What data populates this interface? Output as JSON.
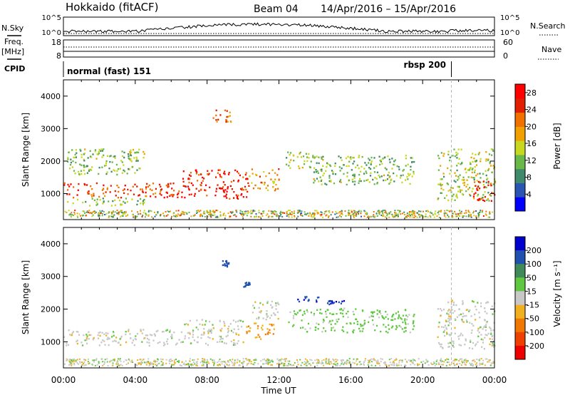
{
  "header": {
    "station": "Hokkaido (fitACF)",
    "beam": "Beam 04",
    "date_range": "14/Apr/2016 – 15/Apr/2016"
  },
  "side_labels": {
    "nsky": "N.Sky",
    "nsearch": "N.Search",
    "freq": "Freq.",
    "freq_unit": "[MHz]",
    "nave": "Nave",
    "cpid": "CPID",
    "nsky_tick_hi": "10^5",
    "nsky_tick_lo": "10^0",
    "nsearch_tick_hi": "10^5",
    "nsearch_tick_lo": "10^0",
    "freq_tick_hi": "18",
    "freq_tick_lo": "8",
    "nave_tick_hi": "60",
    "nave_tick_lo": "0"
  },
  "cpid": {
    "mode1": "normal (fast) 151",
    "mode2": "rbsp 200",
    "switch_hour": 21.6
  },
  "chart_data": [
    {
      "type": "heatmap",
      "panel": "power",
      "ylabel": "Slant Range [km]",
      "xlabel": "",
      "xlim": [
        0,
        24
      ],
      "ylim": [
        200,
        4500
      ],
      "y_ticks": [
        "1000",
        "2000",
        "3000",
        "4000"
      ],
      "colorbar": {
        "label": "Power [dB]",
        "ticks": [
          "4",
          "8",
          "12",
          "16",
          "20",
          "24",
          "28"
        ],
        "range": [
          0,
          30
        ],
        "colors": [
          "#0000ff",
          "#2a55b0",
          "#3f8a6a",
          "#6ab84a",
          "#c8d820",
          "#f0a000",
          "#f07000",
          "#e02000",
          "#ff0000"
        ]
      },
      "regions": [
        {
          "x": [
            0.0,
            6.6
          ],
          "y": [
            900,
            1350
          ],
          "value": 24
        },
        {
          "x": [
            6.6,
            10.3
          ],
          "y": [
            850,
            1750
          ],
          "value": 26
        },
        {
          "x": [
            0.2,
            4.5
          ],
          "y": [
            650,
            900
          ],
          "value": 12
        },
        {
          "x": [
            0.2,
            4.5
          ],
          "y": [
            1600,
            2400
          ],
          "value": 12
        },
        {
          "x": [
            8.3,
            9.3
          ],
          "y": [
            3200,
            3600
          ],
          "value": 22
        },
        {
          "x": [
            10.3,
            12.0
          ],
          "y": [
            1100,
            1800
          ],
          "value": 20
        },
        {
          "x": [
            12.3,
            14.0
          ],
          "y": [
            1800,
            2300
          ],
          "value": 14
        },
        {
          "x": [
            13.8,
            19.5
          ],
          "y": [
            1300,
            2200
          ],
          "value": 12
        },
        {
          "x": [
            20.8,
            24.0
          ],
          "y": [
            800,
            2400
          ],
          "value": 14
        },
        {
          "x": [
            22.7,
            24.0
          ],
          "y": [
            800,
            1400
          ],
          "value": 26
        }
      ]
    },
    {
      "type": "heatmap",
      "panel": "velocity",
      "ylabel": "Slant Range [km]",
      "xlabel": "Time UT",
      "xlim": [
        0,
        24
      ],
      "ylim": [
        200,
        4500
      ],
      "x_ticks": [
        "00:00",
        "04:00",
        "08:00",
        "12:00",
        "16:00",
        "20:00",
        "00:00"
      ],
      "y_ticks": [
        "1000",
        "2000",
        "3000",
        "4000"
      ],
      "colorbar": {
        "label": "Velocity [m s⁻¹]",
        "ticks": [
          "200",
          "100",
          "50",
          "15",
          "-15",
          "-50",
          "-100",
          "-200"
        ],
        "colors": [
          "#0000cc",
          "#2050b0",
          "#408a5a",
          "#60c840",
          "#c8c8c8",
          "#f0b020",
          "#f07800",
          "#ee4000",
          "#ee0000"
        ]
      },
      "regions": [
        {
          "x": [
            0.0,
            6.6
          ],
          "y": [
            900,
            1400
          ],
          "value": 0
        },
        {
          "x": [
            6.6,
            10.0
          ],
          "y": [
            900,
            1700
          ],
          "value": 0
        },
        {
          "x": [
            8.8,
            9.2
          ],
          "y": [
            3300,
            3500
          ],
          "value": 150
        },
        {
          "x": [
            10.0,
            10.4
          ],
          "y": [
            2700,
            2850
          ],
          "value": 180
        },
        {
          "x": [
            10.0,
            11.7
          ],
          "y": [
            1100,
            1600
          ],
          "value": -50
        },
        {
          "x": [
            10.5,
            12.0
          ],
          "y": [
            1700,
            2300
          ],
          "value": 0
        },
        {
          "x": [
            13.0,
            14.2
          ],
          "y": [
            2250,
            2400
          ],
          "value": 190
        },
        {
          "x": [
            14.6,
            15.6
          ],
          "y": [
            2150,
            2300
          ],
          "value": 190
        },
        {
          "x": [
            12.5,
            19.5
          ],
          "y": [
            1300,
            2050
          ],
          "value": 30
        },
        {
          "x": [
            20.8,
            24.0
          ],
          "y": [
            800,
            2300
          ],
          "value": 0
        }
      ]
    }
  ]
}
